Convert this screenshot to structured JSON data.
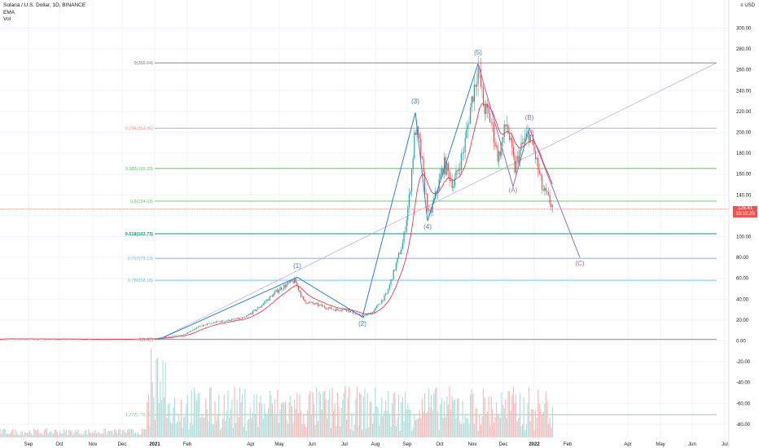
{
  "legend": {
    "title": "Solana / U.S. Dollar, 1D, BINANCE",
    "line2": "EMA",
    "line3": "Vol"
  },
  "currency": "USD",
  "last_price": {
    "value": "126.41",
    "countdown": "19:18:25"
  },
  "colors": {
    "up": "#26a69a",
    "down": "#ef5350",
    "ema": "#f23645",
    "wave": "#2f7fd8",
    "abc": "#8e6fbf",
    "grid": "#f0f3fa"
  },
  "chart_data": {
    "type": "line",
    "title": "Solana / U.S. Dollar, 1D, BINANCE",
    "x_ticks": [
      "Sep",
      "Oct",
      "Nov",
      "Dec",
      "2021",
      "Feb",
      "Apr",
      "May",
      "Jun",
      "Jul",
      "Aug",
      "Sep",
      "Oct",
      "Nov",
      "Dec",
      "2022",
      "Feb",
      "Apr",
      "May",
      "Jun",
      "Jul"
    ],
    "y_ticks": [
      300,
      280,
      260,
      240,
      220,
      200,
      180,
      160,
      140,
      120,
      100,
      80,
      60,
      40,
      20,
      0,
      -20,
      -40,
      -60,
      -80
    ],
    "ylim": [
      -90,
      320
    ],
    "fib_levels": [
      {
        "label": "0(266.64)",
        "value": 266.64,
        "color": "#787b86"
      },
      {
        "label": "0.236(204.05)",
        "value": 204.05,
        "color": "#f28b82"
      },
      {
        "label": "0.382(165.33)",
        "value": 165.33,
        "color": "#66bb6a"
      },
      {
        "label": "0.5(134.03)",
        "value": 134.03,
        "color": "#66bb6a"
      },
      {
        "label": "0.618(102.73)",
        "value": 102.73,
        "color": "#089981"
      },
      {
        "label": "0.707(79.13)",
        "value": 79.13,
        "color": "#64b5f6"
      },
      {
        "label": "0.786(58.18)",
        "value": 58.18,
        "color": "#64b5f6"
      },
      {
        "label": "1(1.42)",
        "value": 1.42,
        "color": "#787b86"
      },
      {
        "label": "1.272(−70.72)",
        "value": -70.72,
        "color": "#81c784"
      }
    ],
    "series": [
      {
        "name": "Solana / U.S. Dollar",
        "points": [
          [
            "Sep 2020",
            2
          ],
          [
            "Nov 2020",
            2
          ],
          [
            "Dec 2020",
            1.5
          ],
          [
            "Jan 2021",
            2
          ],
          [
            "Feb 2021",
            12
          ],
          [
            "Mar 2021",
            16
          ],
          [
            "Apr 2021",
            34
          ],
          [
            "May 2021",
            52
          ],
          [
            "Jun 2021",
            34
          ],
          [
            "Jul 2021",
            30
          ],
          [
            "Aug 2021",
            60
          ],
          [
            "Sep 2021",
            180
          ],
          [
            "Oct 2021",
            150
          ],
          [
            "Nov 2021",
            250
          ],
          [
            "Dec 2021",
            180
          ],
          [
            "Jan 2022",
            170
          ],
          [
            "Jan 2022",
            126.41
          ]
        ]
      }
    ],
    "waves": [
      {
        "label": "(1)",
        "value": 61
      },
      {
        "label": "(2)",
        "value": 23
      },
      {
        "label": "(3)",
        "value": 219
      },
      {
        "label": "(4)",
        "value": 115
      },
      {
        "label": "(5)",
        "value": 266
      },
      {
        "label": "(A)",
        "value": 148
      },
      {
        "label": "(B)",
        "value": 204
      },
      {
        "label": "(C)",
        "value": 80
      }
    ]
  }
}
